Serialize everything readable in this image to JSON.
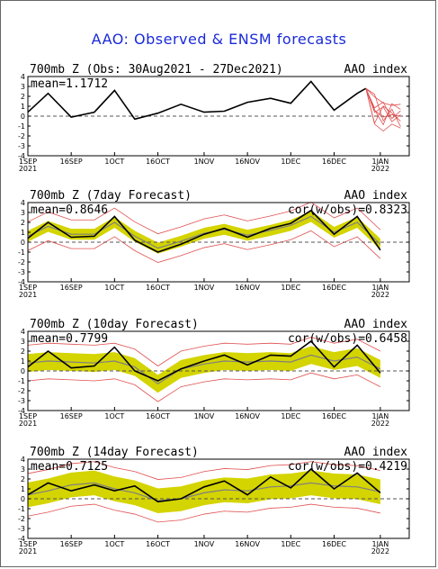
{
  "title": "AAO: Observed & ENSM forecasts",
  "colors": {
    "title": "#1a2ad8",
    "observed": "#000000",
    "ensemble_mean": "#808080",
    "spread_fill": "#d4d400",
    "members": "#e05050",
    "zero_line": "#555555"
  },
  "x_ticks": [
    "1SEP\n2021",
    "16SEP",
    "1OCT",
    "16OCT",
    "1NOV",
    "16NOV",
    "1DEC",
    "16DEC",
    "1JAN\n2022"
  ],
  "y_ticks": [
    "4",
    "3",
    "2",
    "1",
    "0",
    "-1",
    "-2",
    "-3",
    "-4"
  ],
  "panels": [
    {
      "header": "700mb Z (Obs: 30Aug2021 - 27Dec2021)",
      "right_label": "AAO index",
      "mean": "mean=1.1712",
      "corr": ""
    },
    {
      "header": "700mb Z (7day Forecast)",
      "right_label": "AAO index",
      "mean": "mean=0.8646",
      "corr": "cor(w/obs)=0.8323"
    },
    {
      "header": "700mb Z (10day Forecast)",
      "right_label": "AAO index",
      "mean": "mean=0.7799",
      "corr": "cor(w/obs)=0.6458"
    },
    {
      "header": "700mb Z (14day Forecast)",
      "right_label": "AAO index",
      "mean": "mean=0.7125",
      "corr": "cor(w/obs)=0.4219"
    }
  ],
  "chart_data": [
    {
      "type": "line",
      "title": "700mb Z (Obs: 30Aug2021 - 27Dec2021)",
      "ylabel": "AAO index",
      "ylim": [
        -4,
        4
      ],
      "x": [
        "2021-09-01",
        "2021-09-08",
        "2021-09-16",
        "2021-09-24",
        "2021-10-01",
        "2021-10-08",
        "2021-10-16",
        "2021-10-24",
        "2021-11-01",
        "2021-11-08",
        "2021-11-16",
        "2021-11-24",
        "2021-12-01",
        "2021-12-08",
        "2021-12-16",
        "2021-12-24",
        "2021-12-27"
      ],
      "series": [
        {
          "name": "observed",
          "values": [
            0.4,
            2.3,
            -0.1,
            0.4,
            2.6,
            -0.3,
            0.3,
            1.2,
            0.4,
            0.5,
            1.4,
            1.8,
            1.3,
            3.5,
            0.6,
            2.3,
            2.8
          ]
        }
      ],
      "forecast_x": [
        "2021-12-27",
        "2021-12-30",
        "2022-01-02",
        "2022-01-05",
        "2022-01-08"
      ],
      "forecast_members_range": [
        [
          2.8,
          2.8
        ],
        [
          -0.8,
          2.4
        ],
        [
          -1.5,
          1.8
        ],
        [
          -0.8,
          1.4
        ],
        [
          -1.2,
          1.6
        ]
      ]
    },
    {
      "type": "line",
      "title": "700mb Z (7day Forecast)",
      "ylabel": "AAO index",
      "ylim": [
        -4,
        4
      ],
      "x": [
        "2021-09-01",
        "2021-09-08",
        "2021-09-16",
        "2021-09-24",
        "2021-10-01",
        "2021-10-08",
        "2021-10-16",
        "2021-10-24",
        "2021-11-01",
        "2021-11-08",
        "2021-11-16",
        "2021-11-24",
        "2021-12-01",
        "2021-12-08",
        "2021-12-16",
        "2021-12-24",
        "2022-01-01"
      ],
      "series": [
        {
          "name": "observed",
          "values": [
            0.4,
            2.0,
            0.5,
            0.6,
            2.6,
            0.2,
            -1.0,
            -0.2,
            0.8,
            1.4,
            0.5,
            1.4,
            1.9,
            3.2,
            0.8,
            2.6,
            -0.8
          ]
        },
        {
          "name": "ensemble_mean",
          "values": [
            0.6,
            1.6,
            0.8,
            0.8,
            2.0,
            0.6,
            -0.6,
            0.1,
            0.9,
            1.3,
            0.7,
            1.2,
            1.7,
            2.6,
            1.0,
            2.0,
            -0.2
          ]
        }
      ]
    },
    {
      "type": "line",
      "title": "700mb Z (10day Forecast)",
      "ylabel": "AAO index",
      "ylim": [
        -4,
        4
      ],
      "x": [
        "2021-09-01",
        "2021-09-08",
        "2021-09-16",
        "2021-09-24",
        "2021-10-01",
        "2021-10-08",
        "2021-10-16",
        "2021-10-24",
        "2021-11-01",
        "2021-11-08",
        "2021-11-16",
        "2021-11-24",
        "2021-12-01",
        "2021-12-08",
        "2021-12-16",
        "2021-12-24",
        "2022-01-01"
      ],
      "series": [
        {
          "name": "observed",
          "values": [
            0.4,
            2.0,
            0.3,
            0.5,
            2.4,
            0.0,
            -1.0,
            0.2,
            1.0,
            1.6,
            0.6,
            1.6,
            1.5,
            3.0,
            0.4,
            2.6,
            -0.2
          ]
        },
        {
          "name": "ensemble_mean",
          "values": [
            0.8,
            1.0,
            0.9,
            0.8,
            1.0,
            0.4,
            -1.3,
            0.2,
            0.7,
            1.0,
            0.9,
            1.0,
            0.9,
            1.6,
            1.0,
            1.4,
            0.2
          ]
        }
      ]
    },
    {
      "type": "line",
      "title": "700mb Z (14day Forecast)",
      "ylabel": "AAO index",
      "ylim": [
        -4,
        4
      ],
      "x": [
        "2021-09-01",
        "2021-09-08",
        "2021-09-16",
        "2021-09-24",
        "2021-10-01",
        "2021-10-08",
        "2021-10-16",
        "2021-10-24",
        "2021-11-01",
        "2021-11-08",
        "2021-11-16",
        "2021-11-24",
        "2021-12-01",
        "2021-12-08",
        "2021-12-16",
        "2021-12-24",
        "2022-01-01"
      ],
      "series": [
        {
          "name": "observed",
          "values": [
            0.4,
            1.6,
            0.8,
            1.4,
            0.8,
            1.3,
            -0.3,
            0.0,
            1.2,
            1.8,
            0.4,
            2.2,
            1.1,
            3.0,
            1.0,
            2.6,
            0.6
          ]
        },
        {
          "name": "ensemble_mean",
          "values": [
            0.4,
            0.8,
            1.4,
            1.6,
            1.0,
            0.6,
            -0.2,
            0.0,
            0.6,
            0.9,
            0.8,
            1.2,
            1.3,
            1.6,
            1.3,
            1.2,
            0.7
          ]
        }
      ]
    }
  ]
}
